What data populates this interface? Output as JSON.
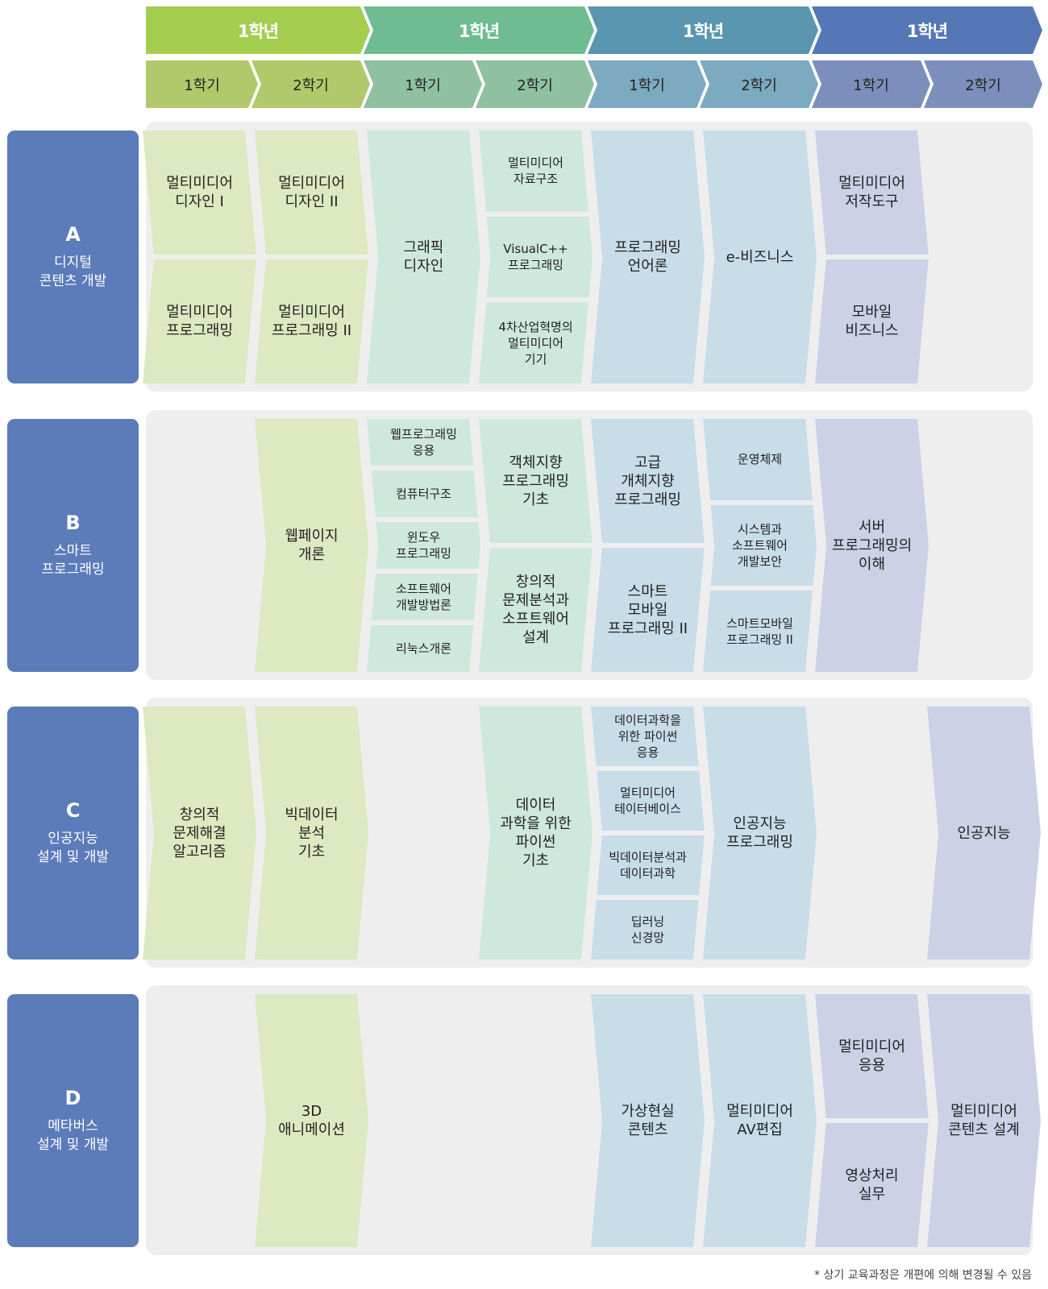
{
  "header": {
    "years": [
      "1학년",
      "1학년",
      "1학년",
      "1학년"
    ],
    "semesters": [
      "1학기",
      "2학기",
      "1학기",
      "2학기",
      "1학기",
      "2학기",
      "1학기",
      "2학기"
    ],
    "year_colors": [
      "#a5cd50",
      "#6fbb92",
      "#5a96b0",
      "#5577b5"
    ],
    "semester_colors": [
      "#b1c96a",
      "#8fc1a1",
      "#7caac0",
      "#7c8fbc"
    ]
  },
  "block_colors": [
    "#dde9c0",
    "#cfe8dc",
    "#c8dde8",
    "#ccd1e6"
  ],
  "sections": [
    {
      "letter": "A",
      "name": "디지털\n콘텐츠 개발",
      "blocks": [
        [
          "멀티미디어\n디자인 I",
          "멀티미디어\n프로그래밍"
        ],
        [
          "멀티미디어\n디자인 II",
          "멀티미디어\n프로그래밍 II"
        ],
        [
          "그래픽\n디자인"
        ],
        [
          "멀티미디어\n자료구조",
          "VisualC++\n프로그래밍",
          "4차산업혁명의\n멀티미디어\n기기"
        ],
        [
          "프로그래밍\n언어론"
        ],
        [
          "e-비즈니스"
        ],
        [
          "멀티미디어\n저작도구",
          "모바일\n비즈니스"
        ]
      ]
    },
    {
      "letter": "B",
      "name": "스마트\n프로그래밍",
      "blocks": [
        [
          "웹페이지\n개론"
        ],
        [
          "웹프로그래밍\n응용",
          "컴퓨터구조",
          "윈도우\n프로그래밍",
          "소프트웨어\n개발방법론",
          "리눅스개론"
        ],
        [
          "객체지향\n프로그래밍\n기초",
          "창의적\n문제분석과\n소프트웨어\n설계"
        ],
        [
          "고급\n개체지향\n프로그래밍",
          "스마트\n모바일\n프로그래밍 II"
        ],
        [
          "운영체제",
          "시스템과\n소프트웨어\n개발보안",
          "스마트모바일\n프로그래밍 II"
        ],
        [
          "서버\n프로그래밍의\n이해"
        ]
      ]
    },
    {
      "letter": "C",
      "name": "인공지능\n설계 및 개발",
      "blocks": [
        [
          "창의적\n문제해결\n알고리즘"
        ],
        [
          "빅데이터\n분석\n기초"
        ],
        [
          "데이터\n과학을 위한\n파이썬\n기초"
        ],
        [
          "데이터과학을\n위한 파이썬\n응용",
          "멀티미디어\n테이터베이스",
          "빅데이터분석과\n데이터과학",
          "딥러닝\n신경망"
        ],
        [
          "인공지능\n프로그래밍"
        ],
        [
          "인공지능"
        ]
      ]
    },
    {
      "letter": "D",
      "name": "메타버스\n설계 및 개발",
      "blocks": [
        [
          "3D\n애니메이션"
        ],
        [
          "가상현실\n콘텐츠"
        ],
        [
          "멀티미디어\nAV편집"
        ],
        [
          "멀티미디어\n응용",
          "영상처리\n실무"
        ],
        [
          "멀티미디어\n콘텐츠 설계"
        ]
      ]
    }
  ],
  "footer": "* 상기 교육과정은 개편에 의해 변경될 수 있음"
}
